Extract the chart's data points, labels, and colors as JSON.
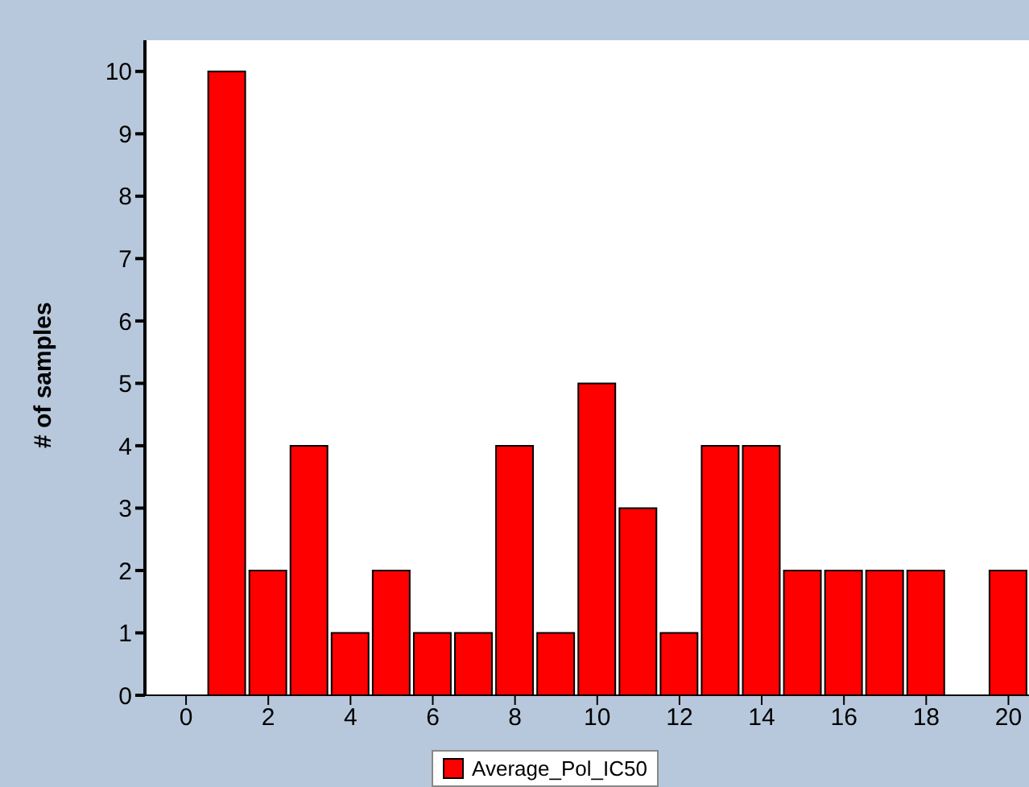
{
  "chart_data": {
    "type": "histogram",
    "ylabel": "# of samples",
    "bins": [
      0.5,
      1.5,
      2.5,
      3.5,
      4.5,
      5.5,
      6.5,
      7.5,
      8.5,
      9.5,
      10.5,
      11.5,
      12.5,
      13.5,
      14.5,
      15.5,
      16.5,
      17.5,
      18.5,
      19.5,
      20.5
    ],
    "series": [
      {
        "name": "Average_Pol_IC50",
        "color": "#ff0000",
        "values": [
          10,
          2,
          4,
          1,
          2,
          1,
          1,
          4,
          1,
          5,
          3,
          1,
          4,
          4,
          2,
          2,
          2,
          2,
          0,
          2
        ]
      }
    ],
    "xlim": [
      -1,
      20.5
    ],
    "xticks": [
      0,
      2,
      4,
      6,
      8,
      10,
      12,
      14,
      16,
      18,
      20
    ],
    "ylim": [
      0,
      10.5
    ],
    "yticks": [
      0,
      1,
      2,
      3,
      4,
      5,
      6,
      7,
      8,
      9,
      10
    ],
    "grid": false,
    "legend": "bottom"
  }
}
